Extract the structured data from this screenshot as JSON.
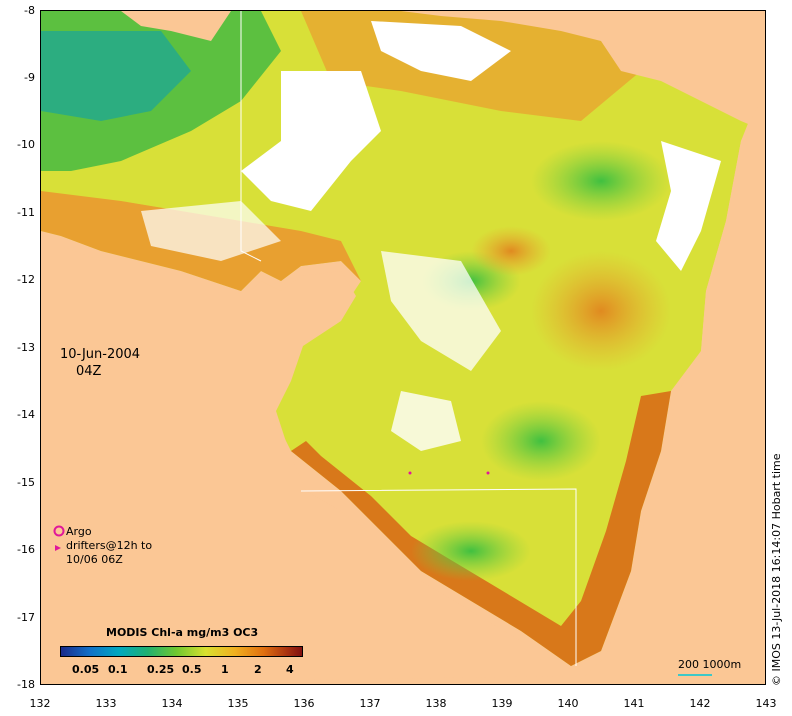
{
  "map": {
    "date": "10-Jun-2004",
    "time": "04Z",
    "y_ticks": [
      "-8",
      "-9",
      "-10",
      "-11",
      "-12",
      "-13",
      "-14",
      "-15",
      "-16",
      "-17",
      "-18"
    ],
    "x_ticks": [
      "132",
      "133",
      "134",
      "135",
      "136",
      "137",
      "138",
      "139",
      "140",
      "141",
      "142",
      "143"
    ],
    "land_color": "#fbc795",
    "no_data_color": "#ffffff"
  },
  "legend": {
    "argo_line1": "Argo",
    "argo_line2": "drifters@12h to",
    "argo_line3": "10/06 06Z",
    "argo_symbol_color": "#e0189a"
  },
  "colorbar": {
    "title": "MODIS Chl-a mg/m3 OC3",
    "ticks": [
      "0.05",
      "0.1",
      "0.25",
      "0.5",
      "1",
      "2",
      "4"
    ]
  },
  "scale": {
    "label": "200  1000m",
    "color": "#3cc8c8"
  },
  "credit": "© IMOS 13-Jul-2018 16:14:07 Hobart time"
}
